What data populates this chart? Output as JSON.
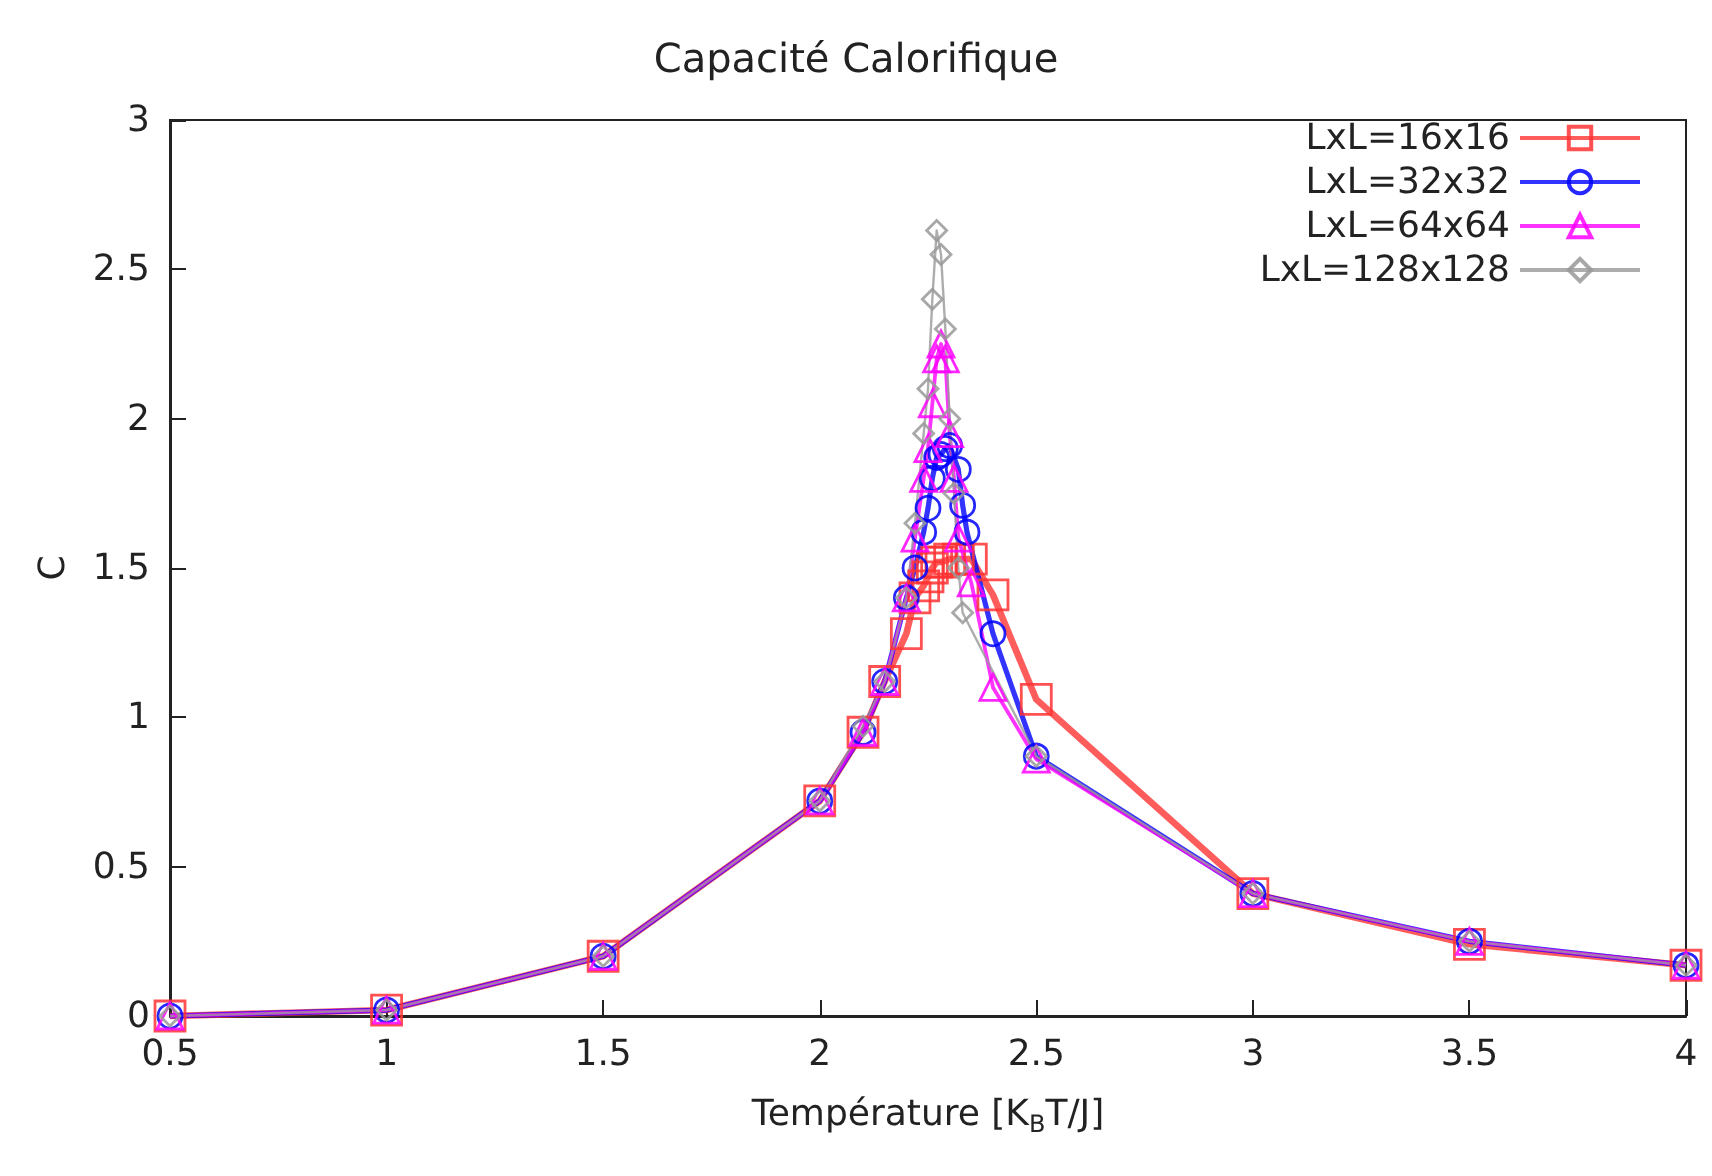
{
  "chart_data": {
    "type": "line",
    "title": "Capacité Calorifique",
    "xlabel": "Température [K$_{B}$T/J]",
    "ylabel": "C",
    "xlim": [
      0.5,
      4
    ],
    "xticks": [
      0.5,
      1,
      1.5,
      2,
      2.5,
      3,
      3.5,
      4
    ],
    "ylim": [
      0,
      3
    ],
    "yticks": [
      0,
      0.5,
      1,
      1.5,
      2,
      2.5,
      3
    ],
    "grid": false,
    "legend": "top right",
    "line_style": "solid",
    "series": [
      {
        "name": "LxL=16x16",
        "color": "#ff3333",
        "marker": "square",
        "x": [
          0.5,
          1,
          1.5,
          2,
          2.1,
          2.15,
          2.2,
          2.22,
          2.24,
          2.25,
          2.26,
          2.27,
          2.28,
          2.3,
          2.32,
          2.35,
          2.4,
          2.5,
          3,
          3.5,
          4
        ],
        "values": [
          0,
          0.02,
          0.2,
          0.72,
          0.95,
          1.12,
          1.28,
          1.4,
          1.44,
          1.47,
          1.5,
          1.52,
          1.52,
          1.53,
          1.53,
          1.53,
          1.41,
          1.06,
          0.41,
          0.24,
          0.17
        ]
      },
      {
        "name": "LxL=32x32",
        "color": "#0000ff",
        "marker": "circle",
        "x": [
          0.5,
          1,
          1.5,
          2,
          2.1,
          2.15,
          2.2,
          2.22,
          2.24,
          2.25,
          2.26,
          2.27,
          2.28,
          2.29,
          2.3,
          2.32,
          2.33,
          2.34,
          2.4,
          2.5,
          3,
          3.5,
          4
        ],
        "values": [
          0,
          0.02,
          0.2,
          0.72,
          0.95,
          1.12,
          1.4,
          1.5,
          1.62,
          1.7,
          1.8,
          1.87,
          1.88,
          1.9,
          1.91,
          1.83,
          1.71,
          1.62,
          1.28,
          0.87,
          0.41,
          0.25,
          0.17
        ]
      },
      {
        "name": "LxL=64x64",
        "color": "#ff00ff",
        "marker": "triangle",
        "x": [
          0.5,
          1,
          1.5,
          2,
          2.1,
          2.15,
          2.2,
          2.22,
          2.24,
          2.25,
          2.26,
          2.27,
          2.28,
          2.29,
          2.3,
          2.31,
          2.32,
          2.35,
          2.4,
          2.5,
          3,
          3.5,
          4
        ],
        "values": [
          0,
          0.02,
          0.2,
          0.72,
          0.95,
          1.12,
          1.4,
          1.6,
          1.8,
          1.9,
          2.05,
          2.2,
          2.25,
          2.2,
          1.95,
          1.8,
          1.6,
          1.45,
          1.1,
          0.86,
          0.41,
          0.25,
          0.17
        ]
      },
      {
        "name": "LxL=128x128",
        "color": "#999999",
        "marker": "diamond",
        "x": [
          0.5,
          1,
          1.5,
          2,
          2.1,
          2.15,
          2.2,
          2.22,
          2.24,
          2.25,
          2.26,
          2.27,
          2.28,
          2.29,
          2.3,
          2.31,
          2.32,
          2.33,
          2.5,
          3,
          3.5,
          4
        ],
        "values": [
          0,
          0.02,
          0.2,
          0.72,
          0.97,
          1.12,
          1.4,
          1.65,
          1.95,
          2.1,
          2.4,
          2.63,
          2.55,
          2.3,
          2.0,
          1.75,
          1.5,
          1.35,
          0.87,
          0.41,
          0.25,
          0.17
        ]
      }
    ]
  }
}
